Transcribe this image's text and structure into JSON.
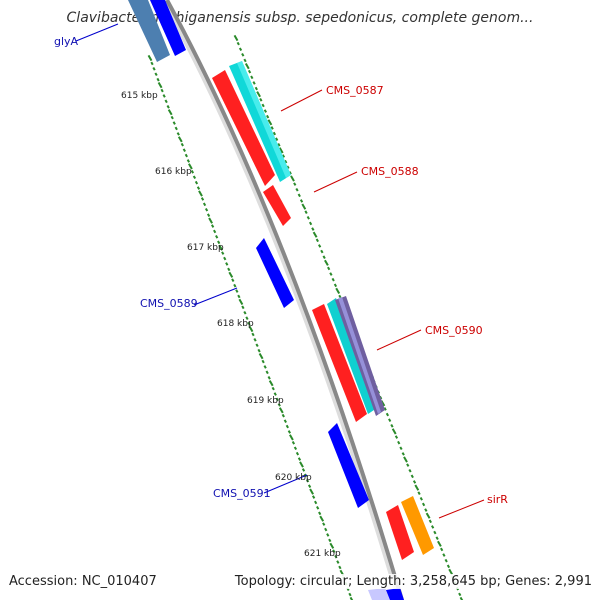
{
  "title": "Clavibacter michiganensis subsp. sepedonicus, complete genom...",
  "footer": {
    "accession": "Accession: NC_010407",
    "summary": "Topology: circular; Length: 3,258,645 bp; Genes: 2,991"
  },
  "ticks": [
    "615 kbp",
    "616 kbp",
    "617 kbp",
    "618 kbp",
    "619 kbp",
    "620 kbp",
    "621 kbp"
  ],
  "genes": [
    {
      "name": "glyA",
      "strand": "reverse"
    },
    {
      "name": "CMS_0587",
      "strand": "forward"
    },
    {
      "name": "CMS_0588",
      "strand": "forward"
    },
    {
      "name": "CMS_0589",
      "strand": "reverse"
    },
    {
      "name": "CMS_0590",
      "strand": "forward"
    },
    {
      "name": "CMS_0591",
      "strand": "reverse"
    },
    {
      "name": "sirR",
      "strand": "forward"
    }
  ],
  "colors": {
    "forward": "#ff0000",
    "reverse": "#0000ff",
    "reverse_label": "#1010b0",
    "forward_label": "#cc0000",
    "rna_track": "#00d0d0",
    "orange_track": "#ff9900",
    "backbone": "#888888",
    "tick": "#2a8a2a"
  }
}
